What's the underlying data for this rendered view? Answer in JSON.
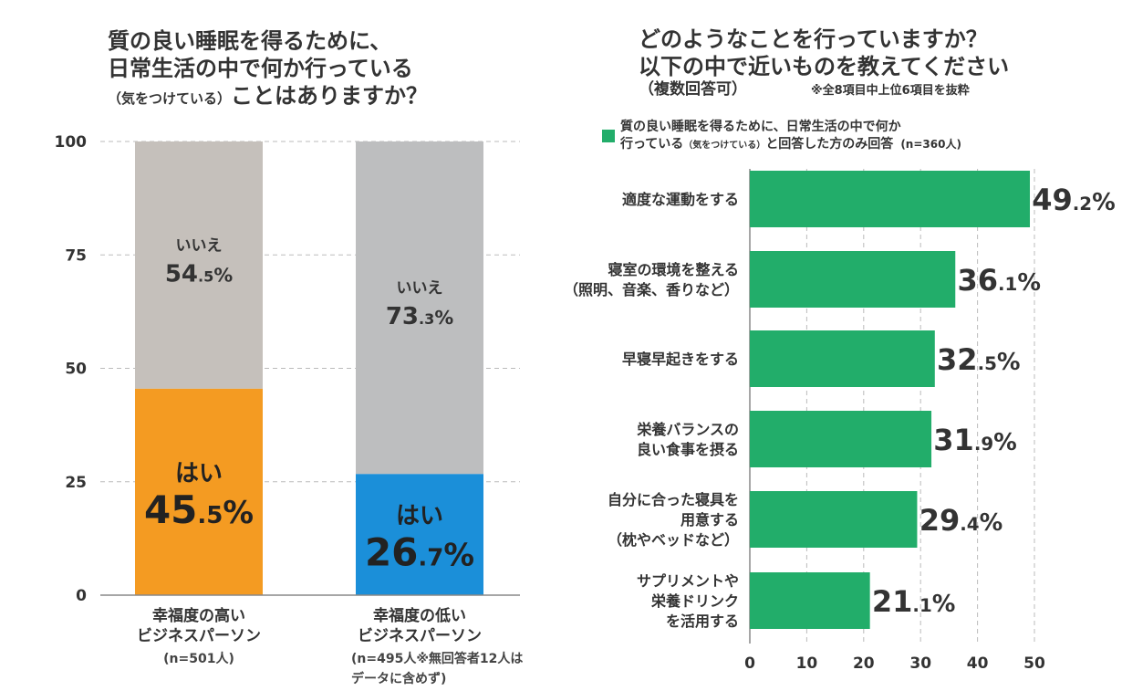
{
  "left": {
    "title_line1": "質の良い睡眠を得るために、",
    "title_line2": "日常生活の中で何か行っている",
    "title_line3a": "（気をつけている）",
    "title_line3b": "ことはありますか？",
    "chart_data": {
      "type": "bar",
      "stacked": true,
      "categories": [
        "幸福度の高い\nビジネスパーソン",
        "幸福度の低い\nビジネスパーソン"
      ],
      "category_notes": [
        "(n=501人)",
        "(n=495人※無回答者12人は\nデータに含めず)"
      ],
      "series": [
        {
          "name": "はい",
          "values": [
            45.5,
            26.7
          ],
          "colors": [
            "#f49b22",
            "#1b8fd9"
          ]
        },
        {
          "name": "いいえ",
          "values": [
            54.5,
            73.3
          ],
          "colors": [
            "#c5c0bb",
            "#bdbebf"
          ]
        }
      ],
      "value_labels": {
        "yes": [
          "45.5%",
          "26.7%"
        ],
        "no": [
          "54.5%",
          "73.3%"
        ]
      },
      "ylim": [
        0,
        100
      ],
      "yticks": [
        "0",
        "25",
        "50",
        "75",
        "100"
      ],
      "grid": true
    }
  },
  "right": {
    "title_line1": "どのようなことを行っていますか？",
    "title_line2": "以下の中で近いものを教えてください",
    "title_line3": "（複数回答可）",
    "note": "※全8項目中上位6項目を抜粋",
    "legend_line1": "質の良い睡眠を得るために、日常生活の中で何か",
    "legend_line2a": "行っている",
    "legend_line2b": "（気をつけている）",
    "legend_line2c": "と回答した方のみ回答",
    "legend_n": "(n=360人)",
    "chart_data": {
      "type": "bar",
      "orientation": "horizontal",
      "color": "#22ad6a",
      "categories": [
        "適度な運動をする",
        "寝室の環境を整える\n（照明、音楽、香りなど）",
        "早寝早起きをする",
        "栄養バランスの\n良い食事を摂る",
        "自分に合った寝具を\n用意する\n（枕やベッドなど）",
        "サプリメントや\n栄養ドリンク\nを活用する"
      ],
      "values": [
        49.2,
        36.1,
        32.5,
        31.9,
        29.4,
        21.1
      ],
      "value_labels": [
        "49.2%",
        "36.1%",
        "32.5%",
        "31.9%",
        "29.4%",
        "21.1%"
      ],
      "xlim": [
        0,
        50
      ],
      "xticks": [
        "0",
        "10",
        "20",
        "30",
        "40",
        "50"
      ],
      "grid": true
    }
  }
}
